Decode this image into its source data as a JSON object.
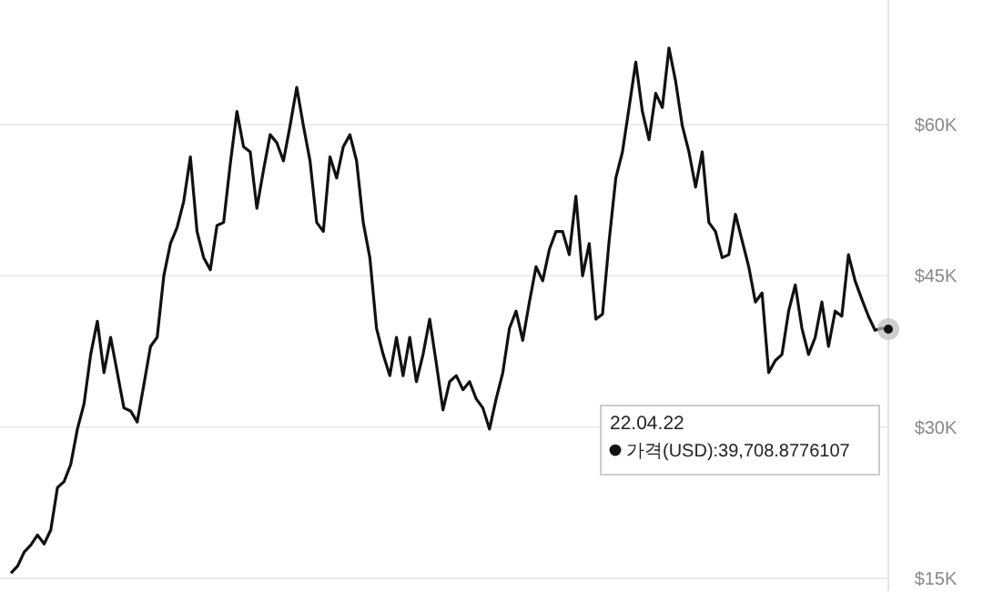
{
  "chart_data": {
    "type": "line",
    "categories": [
      null,
      null,
      null,
      null,
      null,
      null,
      null,
      null,
      null,
      null,
      null,
      null,
      null,
      null,
      null,
      null,
      null,
      null,
      null,
      null,
      null,
      null,
      null,
      null,
      null,
      null,
      null,
      null,
      null,
      null,
      null,
      null,
      null,
      null,
      null,
      null,
      null,
      null,
      null,
      null,
      null,
      null,
      null,
      null,
      null,
      null,
      null,
      null,
      null,
      null,
      null,
      null,
      null,
      null,
      null,
      null,
      null,
      null,
      null,
      null,
      null,
      null,
      null,
      null,
      null,
      null,
      null,
      null,
      null,
      null,
      null,
      null,
      null,
      null,
      null,
      null,
      null,
      null,
      null,
      null,
      null,
      null,
      null,
      null,
      null,
      null,
      null,
      null,
      null,
      null,
      null,
      null,
      null,
      null,
      null,
      null,
      null,
      null,
      null,
      null,
      null,
      null,
      null,
      null,
      null,
      null,
      null,
      null,
      null,
      null,
      null,
      null,
      null,
      null,
      null,
      null,
      null,
      null,
      null,
      null,
      null,
      null,
      null,
      null,
      null,
      null,
      null,
      null,
      null,
      null,
      null,
      null,
      null
    ],
    "series": [
      {
        "color": "#111111",
        "values": [
          15500,
          16200,
          17600,
          18300,
          19300,
          18400,
          19800,
          24000,
          24600,
          26300,
          29800,
          32300,
          37200,
          40500,
          35400,
          38900,
          35400,
          31900,
          31600,
          30500,
          34200,
          38000,
          38900,
          45000,
          48200,
          49800,
          52400,
          56800,
          49400,
          46800,
          45600,
          50000,
          50300,
          56100,
          61300,
          57800,
          57300,
          51700,
          55500,
          59000,
          58200,
          56400,
          59900,
          63700,
          59900,
          56400,
          50300,
          49400,
          56800,
          54700,
          57800,
          59000,
          56400,
          50300,
          46800,
          39800,
          37200,
          35100,
          38900,
          35100,
          38900,
          34500,
          37200,
          40700,
          36300,
          31700,
          34500,
          35100,
          33700,
          34500,
          32800,
          31900,
          29800,
          32800,
          35400,
          39800,
          41500,
          38600,
          42400,
          45900,
          44500,
          47600,
          49400,
          49400,
          47100,
          52900,
          45000,
          48200,
          40700,
          41200,
          48500,
          54700,
          57300,
          61700,
          66200,
          61300,
          58500,
          63100,
          61700,
          67600,
          64300,
          59900,
          57300,
          53800,
          57300,
          50300,
          49400,
          46800,
          47100,
          51100,
          48500,
          45900,
          42400,
          43300,
          35400,
          36600,
          37200,
          41500,
          44100,
          39800,
          37200,
          38900,
          42400,
          38000,
          41500,
          41000,
          47100,
          44500,
          42700,
          41000,
          39600,
          39800,
          39708.8776107
        ]
      }
    ],
    "ylim": [
      15000,
      72000
    ],
    "yticks": [
      {
        "value": 15000,
        "label": "$15K"
      },
      {
        "value": 30000,
        "label": "$30K"
      },
      {
        "value": 45000,
        "label": "$45K"
      },
      {
        "value": 60000,
        "label": "$60K"
      }
    ],
    "grid": "y",
    "tick_labels": "y",
    "annotations": [
      "22.04.22",
      "가격(USD):39,708.8776107"
    ]
  }
}
